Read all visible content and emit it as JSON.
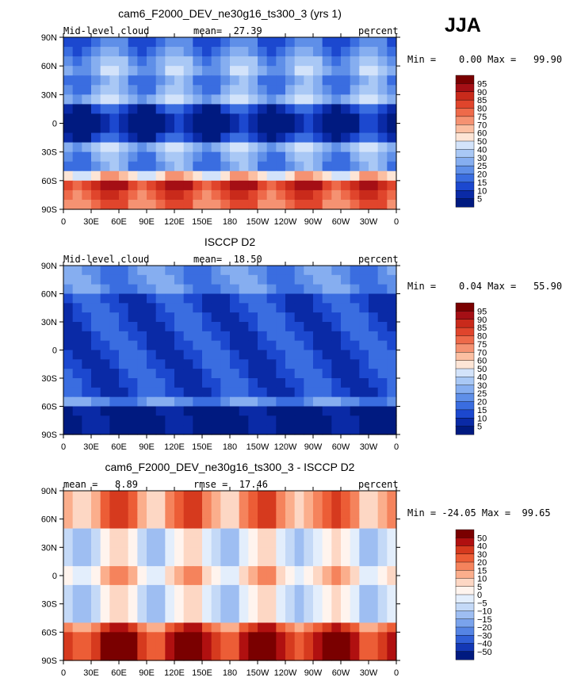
{
  "season": "JJA",
  "x_ticks": [
    "0",
    "30E",
    "60E",
    "90E",
    "120E",
    "150E",
    "180",
    "150W",
    "120W",
    "90W",
    "60W",
    "30W",
    "0"
  ],
  "y_ticks": [
    "90N",
    "60N",
    "30N",
    "0",
    "30S",
    "60S",
    "90S"
  ],
  "chart_data": [
    {
      "type": "heatmap",
      "title": "cam6_F2000_DEV_ne30g16_ts300_3 (yrs 1)",
      "left_label": "Mid-level cloud",
      "center_label": "mean=  27.39",
      "right_label": "percent",
      "minmax": "Min =    0.00 Max =   99.90",
      "xlim": [
        0,
        360
      ],
      "ylim": [
        -90,
        90
      ],
      "colorbar_levels": [
        "95",
        "90",
        "85",
        "80",
        "75",
        "70",
        "60",
        "50",
        "40",
        "30",
        "25",
        "20",
        "15",
        "10",
        "5"
      ]
    },
    {
      "type": "heatmap",
      "title": "ISCCP D2",
      "left_label": "Mid-level cloud",
      "center_label": "mean=  18.50",
      "right_label": "percent",
      "minmax": "Min =    0.04 Max =   55.90",
      "xlim": [
        0,
        360
      ],
      "ylim": [
        -90,
        90
      ],
      "colorbar_levels": [
        "95",
        "90",
        "85",
        "80",
        "75",
        "70",
        "60",
        "50",
        "40",
        "30",
        "25",
        "20",
        "15",
        "10",
        "5"
      ]
    },
    {
      "type": "heatmap",
      "title": "cam6_F2000_DEV_ne30g16_ts300_3 - ISCCP D2",
      "left_label": "mean =   8.89",
      "center_label": "rmse =  17.46",
      "right_label": "percent",
      "minmax": "Min = -24.05 Max =  99.65",
      "xlim": [
        0,
        360
      ],
      "ylim": [
        -90,
        90
      ],
      "colorbar_levels": [
        "50",
        "40",
        "30",
        "20",
        "15",
        "10",
        "5",
        "0",
        "−5",
        "−10",
        "−15",
        "−20",
        "−30",
        "−40",
        "−50"
      ]
    }
  ],
  "colors": {
    "abs_scale": [
      "#7a0000",
      "#a50f15",
      "#c92a1b",
      "#e0452c",
      "#ee6a4a",
      "#f59272",
      "#fbbfa2",
      "#fde5d6",
      "#d3e3fa",
      "#a9c8f5",
      "#86aef0",
      "#5f8fe8",
      "#3a6de0",
      "#1c48cf",
      "#0a2aa6",
      "#001a80"
    ],
    "diff_scale": [
      "#7a0000",
      "#b01010",
      "#d63a1e",
      "#ec5d36",
      "#f5835c",
      "#fbae8c",
      "#fdd7c4",
      "#fff4ee",
      "#e3eefc",
      "#c4d9f7",
      "#9ebef2",
      "#7aa3ec",
      "#5584e4",
      "#305fd6",
      "#1338b5",
      "#001a80"
    ]
  }
}
